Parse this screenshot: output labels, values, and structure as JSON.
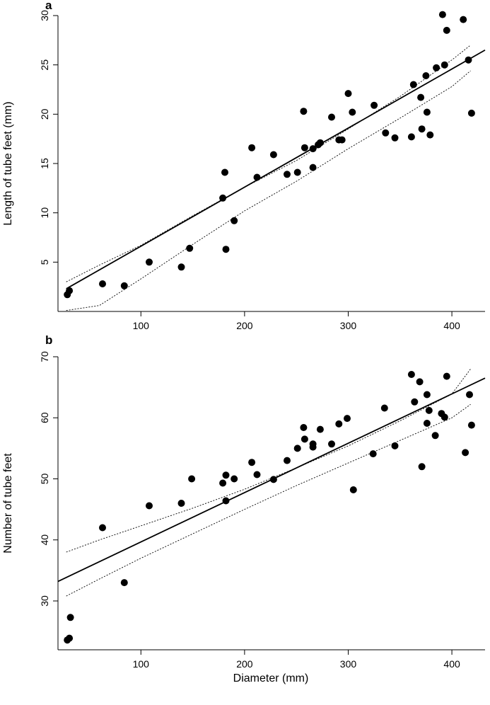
{
  "chart_data": [
    {
      "type": "scatter",
      "panel": "a",
      "title": "",
      "xlabel": "",
      "ylabel": "Length of tube feet (mm)",
      "xlim": [
        20,
        432
      ],
      "ylim": [
        0,
        30
      ],
      "xticks": [
        100,
        200,
        300,
        400
      ],
      "yticks": [
        5,
        10,
        15,
        20,
        25,
        30
      ],
      "grid": false,
      "legend": "none",
      "fit_line": {
        "x": [
          28,
          432
        ],
        "y": [
          2.3,
          26.5
        ]
      },
      "lower_band": {
        "x": [
          28,
          60,
          100,
          150,
          200,
          250,
          300,
          350,
          400,
          418
        ],
        "y": [
          0.1,
          0.6,
          3.3,
          6.8,
          10.2,
          13.2,
          16.5,
          19.6,
          22.8,
          24.4
        ]
      },
      "upper_band": {
        "x": [
          28,
          60,
          100,
          150,
          200,
          250,
          300,
          350,
          400,
          418
        ],
        "y": [
          3.0,
          4.7,
          6.7,
          9.7,
          12.6,
          15.3,
          18.5,
          21.8,
          25.5,
          27.0
        ]
      },
      "points": [
        [
          29,
          1.7
        ],
        [
          31,
          2.1
        ],
        [
          63,
          2.8
        ],
        [
          84,
          2.6
        ],
        [
          108,
          5.0
        ],
        [
          139,
          4.5
        ],
        [
          147,
          6.4
        ],
        [
          179,
          11.5
        ],
        [
          181,
          14.1
        ],
        [
          182,
          6.3
        ],
        [
          190,
          9.2
        ],
        [
          207,
          16.6
        ],
        [
          212,
          13.6
        ],
        [
          228,
          15.9
        ],
        [
          241,
          13.9
        ],
        [
          251,
          14.1
        ],
        [
          257,
          20.3
        ],
        [
          258,
          16.6
        ],
        [
          266,
          14.6
        ],
        [
          266,
          16.5
        ],
        [
          271,
          16.9
        ],
        [
          273,
          17.1
        ],
        [
          284,
          19.7
        ],
        [
          291,
          17.4
        ],
        [
          294,
          17.4
        ],
        [
          300,
          22.1
        ],
        [
          304,
          20.2
        ],
        [
          325,
          20.9
        ],
        [
          336,
          18.1
        ],
        [
          345,
          17.6
        ],
        [
          361,
          17.7
        ],
        [
          363,
          23.0
        ],
        [
          370,
          21.7
        ],
        [
          371,
          18.5
        ],
        [
          375,
          23.9
        ],
        [
          376,
          20.2
        ],
        [
          379,
          17.9
        ],
        [
          385,
          24.7
        ],
        [
          391,
          30.1
        ],
        [
          393,
          25.0
        ],
        [
          395,
          28.5
        ],
        [
          411,
          29.6
        ],
        [
          416,
          25.5
        ],
        [
          419,
          20.1
        ]
      ]
    },
    {
      "type": "scatter",
      "panel": "b",
      "title": "",
      "xlabel": "Diameter (mm)",
      "ylabel": "Number of tube feet",
      "xlim": [
        20,
        432
      ],
      "ylim": [
        22,
        70
      ],
      "xticks": [
        100,
        200,
        300,
        400
      ],
      "yticks": [
        30,
        40,
        50,
        60,
        70
      ],
      "grid": false,
      "legend": "none",
      "fit_line": {
        "x": [
          20,
          432
        ],
        "y": [
          33.2,
          66.5
        ]
      },
      "lower_band": {
        "x": [
          28,
          60,
          100,
          150,
          200,
          250,
          300,
          350,
          400,
          418
        ],
        "y": [
          30.8,
          33.6,
          37.0,
          41.0,
          45.0,
          48.9,
          52.6,
          56.3,
          60.0,
          62.2
        ]
      },
      "upper_band": {
        "x": [
          28,
          60,
          100,
          150,
          200,
          250,
          300,
          350,
          400,
          418
        ],
        "y": [
          38.0,
          40.0,
          42.3,
          45.2,
          48.3,
          51.8,
          55.4,
          59.5,
          63.9,
          68.0
        ]
      },
      "points": [
        [
          29,
          23.6
        ],
        [
          31,
          23.9
        ],
        [
          32,
          27.3
        ],
        [
          63,
          42.0
        ],
        [
          84,
          33.0
        ],
        [
          108,
          45.6
        ],
        [
          139,
          46.0
        ],
        [
          149,
          50.0
        ],
        [
          179,
          49.3
        ],
        [
          182,
          50.6
        ],
        [
          182,
          46.4
        ],
        [
          190,
          50.0
        ],
        [
          207,
          52.7
        ],
        [
          212,
          50.7
        ],
        [
          228,
          49.9
        ],
        [
          241,
          53.0
        ],
        [
          251,
          55.0
        ],
        [
          257,
          58.4
        ],
        [
          258,
          56.5
        ],
        [
          266,
          55.7
        ],
        [
          266,
          55.2
        ],
        [
          273,
          58.1
        ],
        [
          284,
          55.7
        ],
        [
          291,
          59.0
        ],
        [
          299,
          59.9
        ],
        [
          305,
          48.2
        ],
        [
          324,
          54.1
        ],
        [
          335,
          61.6
        ],
        [
          345,
          55.4
        ],
        [
          361,
          67.1
        ],
        [
          364,
          62.6
        ],
        [
          369,
          65.9
        ],
        [
          371,
          52.0
        ],
        [
          376,
          63.8
        ],
        [
          376,
          59.1
        ],
        [
          378,
          61.2
        ],
        [
          384,
          57.1
        ],
        [
          390,
          60.7
        ],
        [
          393,
          60.1
        ],
        [
          395,
          66.8
        ],
        [
          413,
          54.3
        ],
        [
          417,
          63.8
        ],
        [
          419,
          58.8
        ]
      ]
    }
  ]
}
